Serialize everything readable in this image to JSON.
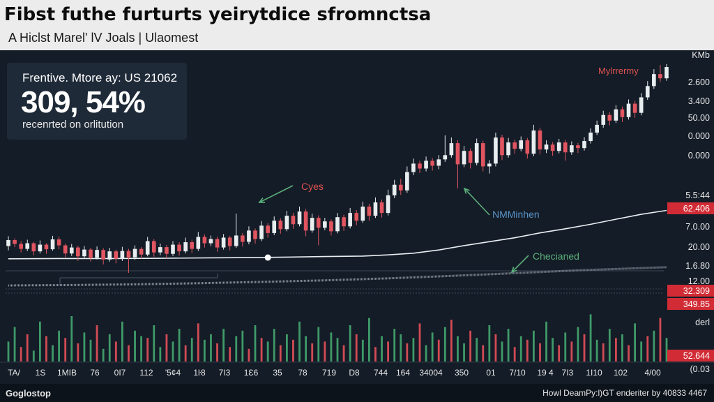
{
  "header": {
    "title": "Fibst futhe furturts yeirytdice sfromnctsa",
    "subtitle": "A Hiclst Marel' lV Joals  |  Ulaomest"
  },
  "stat_card": {
    "label": "Frentive. Mtore ay: US 21062",
    "value": "309, 54%",
    "note": "recenrted on orlitution"
  },
  "footer": {
    "left": "Goglostop",
    "right": "Howl DeamPy:l)GT enderiter by 40833 4467"
  },
  "colors": {
    "up": "#e8eef0",
    "down": "#e05560",
    "volume_up": "#3f9a68",
    "volume_down": "#d24b55",
    "line": "#e9eef2",
    "annotation_red": "#e0524f",
    "annotation_blue": "#5a93c6",
    "annotation_green": "#5cb07a",
    "tag_bg": "#d12c36"
  },
  "chart_data": {
    "type": "candlestick",
    "x_tick_labels": [
      "TA/",
      "1S",
      "1MIB",
      "76",
      "0I7",
      "112",
      "'5¢4",
      "1ŀ8",
      "7I3",
      "1Ɛ6",
      "35",
      "78",
      "719",
      "D8",
      "744",
      "164",
      "34004",
      "350",
      "01",
      "7/10",
      "19 4",
      "7I3",
      "1I10",
      "102",
      "4/00"
    ],
    "price_labels": [
      {
        "text": "KMb"
      },
      {
        "text": "2.600"
      },
      {
        "text": "3.400"
      },
      {
        "text": "50.00"
      },
      {
        "text": "0.000"
      },
      {
        "text": "0.000"
      },
      {
        "text": "5.5:44"
      },
      {
        "text": "62.406",
        "highlight": true
      },
      {
        "text": "7.0.00"
      },
      {
        "text": "20.00"
      },
      {
        "text": "1.6.80"
      },
      {
        "text": "12.00"
      },
      {
        "text": "32.309",
        "highlight": true
      },
      {
        "text": "349.85",
        "highlight": true
      },
      {
        "text": "derl"
      },
      {
        "text": "52.644",
        "highlight": true
      },
      {
        "text": "(0.03"
      }
    ],
    "annotations": [
      {
        "text": "Mylrrermy",
        "color": "red"
      },
      {
        "text": "Cyes",
        "color": "red"
      },
      {
        "text": "NMMinhen",
        "color": "blue"
      },
      {
        "text": "Checianed",
        "color": "green"
      }
    ],
    "candles": [
      [
        48.4,
        50.1,
        51.2,
        47.2
      ],
      [
        50.1,
        49.0,
        50.6,
        48.1
      ],
      [
        49.0,
        47.6,
        49.8,
        46.6
      ],
      [
        47.6,
        49.2,
        50.2,
        47.0
      ],
      [
        49.2,
        46.9,
        49.6,
        45.8
      ],
      [
        46.9,
        48.8,
        50.0,
        46.3
      ],
      [
        48.8,
        47.5,
        49.2,
        46.2
      ],
      [
        47.5,
        50.3,
        51.3,
        47.1
      ],
      [
        50.3,
        48.6,
        51.1,
        47.5
      ],
      [
        48.6,
        46.3,
        49.1,
        45.2
      ],
      [
        46.3,
        48.0,
        49.0,
        45.6
      ],
      [
        48.0,
        45.5,
        48.5,
        44.2
      ],
      [
        45.5,
        47.4,
        48.4,
        45.0
      ],
      [
        47.4,
        45.1,
        47.9,
        44.0
      ],
      [
        45.1,
        47.3,
        48.3,
        44.6
      ],
      [
        47.3,
        44.6,
        47.8,
        43.2
      ],
      [
        44.6,
        46.9,
        47.9,
        44.0
      ],
      [
        46.9,
        44.8,
        47.4,
        43.5
      ],
      [
        44.8,
        47.0,
        48.2,
        44.2
      ],
      [
        47.0,
        45.2,
        47.6,
        40.8
      ],
      [
        45.2,
        47.6,
        48.6,
        44.5
      ],
      [
        47.6,
        46.0,
        48.1,
        44.8
      ],
      [
        46.0,
        49.8,
        51.0,
        45.5
      ],
      [
        49.8,
        46.6,
        50.4,
        45.4
      ],
      [
        46.6,
        48.1,
        49.1,
        45.8
      ],
      [
        48.1,
        46.2,
        48.7,
        44.9
      ],
      [
        46.2,
        48.8,
        49.8,
        45.6
      ],
      [
        48.8,
        46.9,
        49.5,
        45.7
      ],
      [
        46.9,
        49.5,
        50.8,
        46.3
      ],
      [
        49.5,
        47.6,
        50.2,
        46.4
      ],
      [
        47.6,
        51.0,
        52.4,
        47.0
      ],
      [
        51.0,
        49.2,
        51.7,
        48.0
      ],
      [
        49.2,
        50.4,
        51.4,
        48.4
      ],
      [
        50.4,
        48.0,
        51.0,
        46.8
      ],
      [
        48.0,
        50.8,
        51.8,
        47.4
      ],
      [
        50.8,
        48.4,
        51.3,
        47.2
      ],
      [
        48.4,
        51.4,
        57.6,
        47.9
      ],
      [
        51.4,
        49.6,
        52.1,
        48.3
      ],
      [
        49.6,
        52.8,
        54.0,
        48.9
      ],
      [
        52.8,
        50.4,
        53.4,
        49.1
      ],
      [
        50.4,
        54.2,
        55.5,
        49.8
      ],
      [
        54.2,
        52.1,
        54.9,
        50.8
      ],
      [
        52.1,
        55.6,
        56.8,
        51.5
      ],
      [
        55.6,
        53.2,
        56.3,
        51.9
      ],
      [
        53.2,
        57.0,
        58.4,
        52.6
      ],
      [
        57.0,
        54.6,
        57.8,
        53.3
      ],
      [
        54.6,
        58.2,
        59.6,
        54.0
      ],
      [
        58.2,
        52.8,
        58.9,
        51.2
      ],
      [
        52.8,
        56.4,
        57.6,
        52.2
      ],
      [
        56.4,
        53.6,
        57.1,
        48.6
      ],
      [
        53.6,
        55.4,
        56.4,
        52.9
      ],
      [
        55.4,
        52.6,
        56.0,
        51.4
      ],
      [
        52.6,
        56.6,
        57.8,
        52.0
      ],
      [
        56.6,
        54.0,
        57.3,
        52.7
      ],
      [
        54.0,
        57.8,
        59.2,
        53.4
      ],
      [
        57.8,
        55.6,
        58.6,
        54.3
      ],
      [
        55.6,
        59.6,
        61.0,
        55.0
      ],
      [
        59.6,
        57.0,
        60.4,
        55.6
      ],
      [
        57.0,
        60.8,
        62.2,
        56.4
      ],
      [
        60.8,
        57.8,
        61.6,
        56.5
      ],
      [
        57.8,
        62.8,
        64.4,
        57.1
      ],
      [
        62.8,
        65.8,
        67.2,
        62.0
      ],
      [
        65.8,
        64.2,
        67.5,
        62.9
      ],
      [
        64.2,
        69.4,
        71.0,
        63.5
      ],
      [
        69.4,
        71.8,
        73.2,
        68.5
      ],
      [
        71.8,
        70.4,
        72.6,
        69.1
      ],
      [
        70.4,
        72.6,
        73.8,
        69.6
      ],
      [
        72.6,
        71.2,
        73.4,
        69.8
      ],
      [
        71.2,
        73.0,
        74.2,
        70.2
      ],
      [
        73.0,
        74.2,
        79.8,
        72.3
      ],
      [
        74.2,
        77.6,
        79.2,
        73.5
      ],
      [
        77.6,
        71.6,
        78.4,
        64.8
      ],
      [
        71.6,
        75.4,
        76.8,
        70.8
      ],
      [
        75.4,
        72.0,
        76.1,
        70.4
      ],
      [
        72.0,
        77.6,
        78.9,
        71.3
      ],
      [
        77.6,
        71.0,
        78.3,
        69.6
      ],
      [
        71.0,
        71.8,
        72.8,
        69.0
      ],
      [
        71.8,
        79.2,
        80.6,
        71.0
      ],
      [
        79.2,
        74.2,
        80.0,
        72.8
      ],
      [
        74.2,
        77.8,
        79.1,
        73.5
      ],
      [
        77.8,
        76.0,
        78.6,
        74.6
      ],
      [
        76.0,
        78.4,
        79.5,
        75.3
      ],
      [
        78.4,
        74.6,
        79.1,
        73.2
      ],
      [
        74.6,
        81.2,
        82.8,
        73.9
      ],
      [
        81.2,
        75.8,
        82.0,
        74.4
      ],
      [
        75.8,
        77.2,
        78.4,
        74.8
      ],
      [
        77.2,
        75.4,
        77.9,
        74.0
      ],
      [
        75.4,
        77.8,
        78.8,
        74.7
      ],
      [
        77.8,
        75.0,
        78.5,
        72.6
      ],
      [
        75.0,
        77.0,
        78.1,
        74.3
      ],
      [
        77.0,
        76.2,
        77.7,
        74.8
      ],
      [
        76.2,
        78.2,
        79.3,
        75.5
      ],
      [
        78.2,
        80.6,
        81.8,
        77.5
      ],
      [
        80.6,
        82.8,
        84.0,
        79.9
      ],
      [
        82.8,
        85.6,
        86.8,
        82.0
      ],
      [
        85.6,
        84.0,
        86.4,
        82.6
      ],
      [
        84.0,
        87.2,
        88.4,
        83.3
      ],
      [
        87.2,
        85.0,
        88.0,
        83.6
      ],
      [
        85.0,
        88.8,
        90.0,
        84.3
      ],
      [
        88.8,
        86.2,
        89.6,
        84.8
      ],
      [
        86.2,
        90.6,
        91.8,
        85.5
      ],
      [
        90.6,
        93.8,
        95.2,
        89.9
      ],
      [
        93.8,
        97.2,
        98.6,
        93.0
      ],
      [
        97.2,
        96.0,
        99.8,
        95.0
      ],
      [
        96.0,
        99.2,
        100.0,
        95.3
      ]
    ],
    "trend_line": [
      [
        0,
        7.2
      ],
      [
        8,
        7.3
      ],
      [
        16,
        7.3
      ],
      [
        24,
        7.4
      ],
      [
        32,
        7.6
      ],
      [
        38,
        7.7
      ],
      [
        44,
        7.9
      ],
      [
        50,
        8.1
      ],
      [
        56,
        8.3
      ],
      [
        60,
        8.8
      ],
      [
        64,
        9.5
      ],
      [
        68,
        10.8
      ],
      [
        72,
        12.6
      ],
      [
        76,
        14.2
      ],
      [
        80,
        15.8
      ],
      [
        84,
        17.8
      ],
      [
        88,
        19.5
      ],
      [
        92,
        21.3
      ],
      [
        96,
        23.4
      ],
      [
        100,
        25.4
      ],
      [
        104,
        27.0
      ]
    ],
    "lower_line": [
      [
        0,
        2.8
      ],
      [
        10,
        3.0
      ],
      [
        20,
        3.3
      ],
      [
        30,
        3.8
      ],
      [
        40,
        4.4
      ],
      [
        50,
        5.1
      ],
      [
        60,
        6.0
      ],
      [
        70,
        7.1
      ],
      [
        80,
        8.3
      ],
      [
        90,
        9.6
      ],
      [
        104,
        11.0
      ]
    ],
    "trend_marker": [
      41,
      7.7
    ],
    "volumes": [
      [
        22,
        1
      ],
      [
        38,
        1
      ],
      [
        16,
        0
      ],
      [
        30,
        0
      ],
      [
        12,
        1
      ],
      [
        44,
        1
      ],
      [
        28,
        0
      ],
      [
        18,
        1
      ],
      [
        34,
        1
      ],
      [
        26,
        0
      ],
      [
        50,
        1
      ],
      [
        20,
        0
      ],
      [
        32,
        1
      ],
      [
        24,
        1
      ],
      [
        40,
        0
      ],
      [
        14,
        1
      ],
      [
        30,
        1
      ],
      [
        22,
        0
      ],
      [
        44,
        1
      ],
      [
        18,
        0
      ],
      [
        34,
        1
      ],
      [
        28,
        1
      ],
      [
        26,
        0
      ],
      [
        40,
        1
      ],
      [
        16,
        1
      ],
      [
        30,
        0
      ],
      [
        22,
        1
      ],
      [
        36,
        1
      ],
      [
        18,
        0
      ],
      [
        26,
        1
      ],
      [
        42,
        0
      ],
      [
        24,
        1
      ],
      [
        30,
        1
      ],
      [
        20,
        0
      ],
      [
        36,
        1
      ],
      [
        16,
        0
      ],
      [
        28,
        1
      ],
      [
        34,
        1
      ],
      [
        14,
        0
      ],
      [
        40,
        1
      ],
      [
        26,
        0
      ],
      [
        22,
        1
      ],
      [
        36,
        1
      ],
      [
        18,
        0
      ],
      [
        30,
        1
      ],
      [
        24,
        0
      ],
      [
        44,
        1
      ],
      [
        28,
        1
      ],
      [
        20,
        0
      ],
      [
        38,
        1
      ],
      [
        22,
        0
      ],
      [
        32,
        1
      ],
      [
        26,
        1
      ],
      [
        18,
        0
      ],
      [
        40,
        1
      ],
      [
        30,
        0
      ],
      [
        24,
        1
      ],
      [
        48,
        1
      ],
      [
        16,
        0
      ],
      [
        28,
        1
      ],
      [
        22,
        0
      ],
      [
        36,
        1
      ],
      [
        30,
        1
      ],
      [
        20,
        0
      ],
      [
        26,
        1
      ],
      [
        42,
        0
      ],
      [
        18,
        1
      ],
      [
        32,
        1
      ],
      [
        24,
        0
      ],
      [
        38,
        1
      ],
      [
        46,
        0
      ],
      [
        28,
        1
      ],
      [
        20,
        1
      ],
      [
        34,
        0
      ],
      [
        26,
        1
      ],
      [
        18,
        0
      ],
      [
        40,
        1
      ],
      [
        30,
        0
      ],
      [
        22,
        1
      ],
      [
        36,
        1
      ],
      [
        16,
        0
      ],
      [
        28,
        1
      ],
      [
        24,
        0
      ],
      [
        34,
        1
      ],
      [
        20,
        0
      ],
      [
        44,
        1
      ],
      [
        26,
        1
      ],
      [
        18,
        0
      ],
      [
        32,
        1
      ],
      [
        22,
        0
      ],
      [
        38,
        1
      ],
      [
        30,
        0
      ],
      [
        52,
        1
      ],
      [
        24,
        1
      ],
      [
        20,
        0
      ],
      [
        36,
        1
      ],
      [
        26,
        0
      ],
      [
        30,
        1
      ],
      [
        18,
        0
      ],
      [
        42,
        1
      ],
      [
        22,
        1
      ],
      [
        28,
        0
      ],
      [
        34,
        1
      ],
      [
        48,
        0
      ],
      [
        26,
        1
      ]
    ]
  }
}
